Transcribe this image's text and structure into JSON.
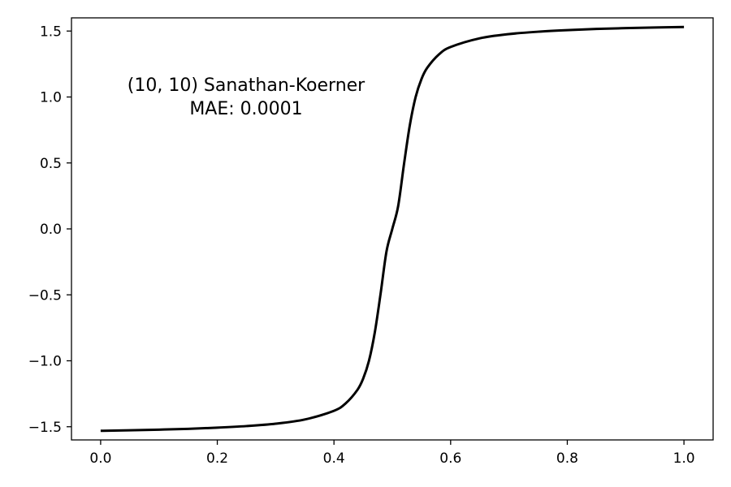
{
  "chart_data": {
    "type": "line",
    "title": "",
    "xlabel": "",
    "ylabel": "",
    "xlim": [
      -0.05,
      1.05
    ],
    "ylim": [
      -1.6,
      1.6
    ],
    "x_ticks": [
      0.0,
      0.2,
      0.4,
      0.6,
      0.8,
      1.0
    ],
    "y_ticks": [
      -1.5,
      -1.0,
      -0.5,
      0.0,
      0.5,
      1.0,
      1.5
    ],
    "x_tick_labels": [
      "0.0",
      "0.2",
      "0.4",
      "0.6",
      "0.8",
      "1.0"
    ],
    "y_tick_labels": [
      "−1.5",
      "−1.0",
      "−0.5",
      "0.0",
      "0.5",
      "1.0",
      "1.5"
    ],
    "grid": false,
    "annotation": {
      "line1": "(10, 10) Sanathan-Koerner",
      "line2": "MAE: 0.0001"
    },
    "series": [
      {
        "color": "#000000",
        "x": [
          0.0,
          0.05,
          0.1,
          0.15,
          0.2,
          0.25,
          0.3,
          0.35,
          0.4,
          0.42,
          0.44,
          0.45,
          0.46,
          0.47,
          0.48,
          0.49,
          0.5,
          0.51,
          0.52,
          0.53,
          0.54,
          0.55,
          0.56,
          0.58,
          0.6,
          0.65,
          0.7,
          0.75,
          0.8,
          0.85,
          0.9,
          0.95,
          1.0
        ],
        "y": [
          -1.531,
          -1.527,
          -1.522,
          -1.516,
          -1.507,
          -1.495,
          -1.477,
          -1.445,
          -1.379,
          -1.323,
          -1.222,
          -1.136,
          -1.0,
          -0.785,
          -0.489,
          -0.172,
          0.0,
          0.172,
          0.489,
          0.785,
          1.0,
          1.136,
          1.222,
          1.323,
          1.379,
          1.445,
          1.477,
          1.495,
          1.507,
          1.516,
          1.522,
          1.527,
          1.531
        ]
      }
    ]
  }
}
